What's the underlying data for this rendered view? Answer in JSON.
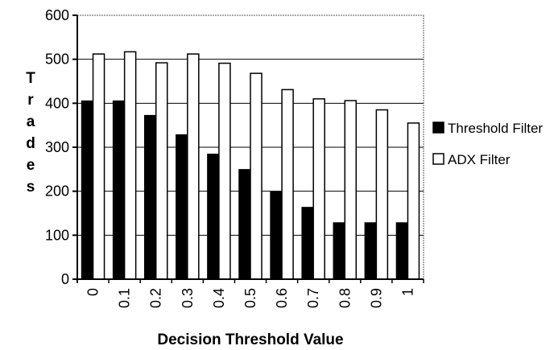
{
  "chart_data": {
    "type": "bar",
    "title": "",
    "xlabel": "Decision Threshold Value",
    "ylabel": "Trades",
    "categories": [
      "0",
      "0.1",
      "0.2",
      "0.3",
      "0.4",
      "0.5",
      "0.6",
      "0.7",
      "0.8",
      "0.9",
      "1"
    ],
    "ylim": [
      0,
      600
    ],
    "yticks": [
      "0",
      "100",
      "200",
      "300",
      "400",
      "500",
      "600"
    ],
    "grid": true,
    "legend_position": "right",
    "series": [
      {
        "name": "Threshold Filter",
        "color": "#000000",
        "values": [
          405,
          405,
          372,
          328,
          284,
          249,
          198,
          163,
          128,
          128,
          128
        ]
      },
      {
        "name": "ADX Filter",
        "color": "#ffffff",
        "values": [
          512,
          517,
          492,
          512,
          491,
          468,
          431,
          410,
          406,
          385,
          355
        ]
      }
    ]
  }
}
